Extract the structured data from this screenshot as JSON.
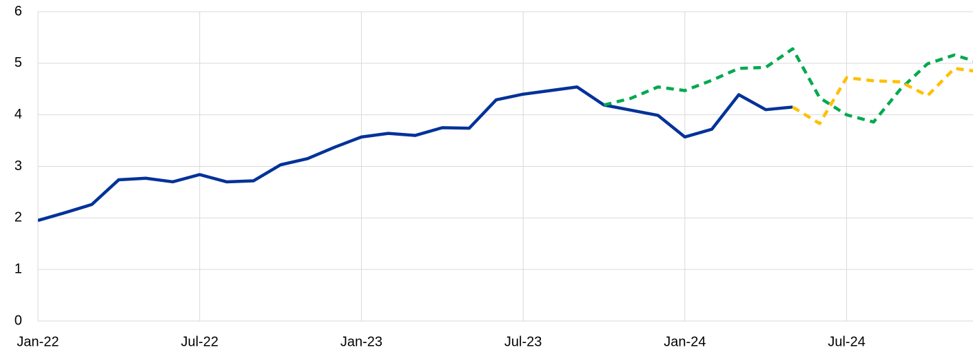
{
  "chart_data": {
    "type": "line",
    "categories": [
      "Jan-22",
      null,
      null,
      null,
      null,
      null,
      "Jul-22",
      null,
      null,
      null,
      null,
      null,
      "Jan-23",
      null,
      null,
      null,
      null,
      null,
      "Jul-23",
      null,
      null,
      null,
      null,
      null,
      "Jan-24",
      null,
      null,
      null,
      null,
      null,
      "Jul-24",
      null,
      null,
      null,
      null,
      null
    ],
    "series": [
      {
        "color": "#003299",
        "dashed": false,
        "values": [
          1.95,
          2.1,
          2.26,
          2.74,
          2.77,
          2.7,
          2.84,
          2.7,
          2.72,
          3.03,
          3.15,
          3.37,
          3.57,
          3.64,
          3.6,
          3.75,
          3.74,
          4.29,
          4.4,
          4.47,
          4.54,
          4.19,
          4.09,
          3.99,
          3.57,
          3.72,
          4.39,
          4.1,
          4.15,
          null,
          null,
          null,
          null,
          null,
          null,
          null
        ]
      },
      {
        "color": "#00a94f",
        "dashed": true,
        "values": [
          null,
          null,
          null,
          null,
          null,
          null,
          null,
          null,
          null,
          null,
          null,
          null,
          null,
          null,
          null,
          null,
          null,
          null,
          null,
          null,
          null,
          4.19,
          4.32,
          4.54,
          4.47,
          4.67,
          4.9,
          4.92,
          5.28,
          4.33,
          4.0,
          3.86,
          4.5,
          4.99,
          5.16,
          5.0
        ]
      },
      {
        "color": "#ffbf00",
        "dashed": true,
        "values": [
          null,
          null,
          null,
          null,
          null,
          null,
          null,
          null,
          null,
          null,
          null,
          null,
          null,
          null,
          null,
          null,
          null,
          null,
          null,
          null,
          null,
          null,
          null,
          null,
          null,
          null,
          null,
          null,
          4.15,
          3.83,
          4.72,
          4.66,
          4.64,
          4.37,
          4.9,
          4.83
        ]
      }
    ],
    "ylim": [
      0,
      6
    ],
    "yticks": [
      0,
      1,
      2,
      3,
      4,
      5,
      6
    ],
    "grid": true
  }
}
